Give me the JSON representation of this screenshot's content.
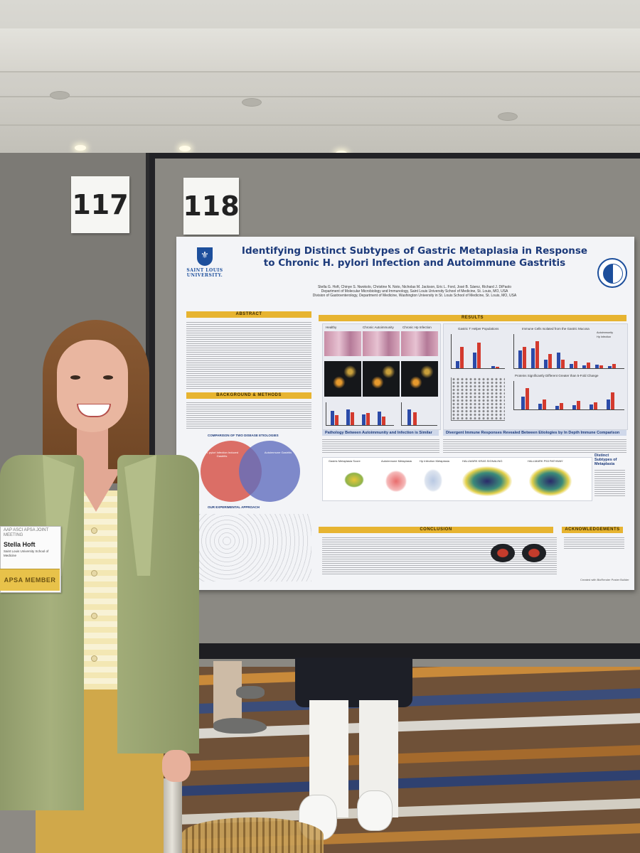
{
  "booth_numbers": {
    "left": "117",
    "right": "118"
  },
  "poster": {
    "title_line1": "Identifying Distinct Subtypes of Gastric Metaplasia in Response",
    "title_line2": "to Chronic H. pylori Infection and Autoimmune Gastritis",
    "university": "SAINT LOUIS UNIVERSITY.",
    "authors": "Stella G. Hoft, Chinye S. Nwokolo, Christine N. Noto, Nicholas M. Jackson, Eric L. Ford, José B. Sáenz, Richard J. DiPaolo",
    "affil1": "Department of Molecular Microbiology and Immunology, Saint Louis University School of Medicine, St. Louis, MO, USA",
    "affil2": "Division of Gastroenterology, Department of Medicine, Washington University in St. Louis School of Medicine, St. Louis, MO, USA",
    "sections": {
      "abstract": "ABSTRACT",
      "results": "RESULTS",
      "background": "BACKGROUND & METHODS",
      "conclusion": "CONCLUSION",
      "acknowledgements": "ACKNOWLEDGEMENTS"
    },
    "subheads": {
      "pathology": "Pathology Between Autoimmunity and Infection is Similar",
      "divergent": "Divergent Immune Responses Revealed Between Etiologies by In Depth Immune Comparison",
      "distinct": "Distinct Subtypes of Metaplasia",
      "comparison": "COMPARISON OF TWO DISEASE ETIOLOGIES",
      "approach": "OUR EXPERIMENTAL APPROACH"
    },
    "histology_labels": [
      "Healthy",
      "Chronic Autoimmunity",
      "Chronic Hp Infection"
    ],
    "chart_titles": [
      "Gastric T Helper Populations",
      "Immune Cells Isolated from the Gastric Mucosa",
      "Proteins Significantly Different Greater than 5-Fold Change"
    ],
    "legend": [
      "Autoimmunity",
      "Hp Infection"
    ],
    "umap_titles": [
      "Gastric Metaplasia Score",
      "Autoimmune Metaplasia",
      "Hp Infection Metaplasia",
      "HALLMARK KRAS SIGNALING",
      "HALLMARK P53 PATHWAY"
    ],
    "venn_left": "H. pylori Infection Induced Gastritis",
    "venn_right": "Autoimmune Gastritis",
    "footer": "Created with BioRender Poster Builder"
  },
  "badge": {
    "top_line": "AAP ASCI APSA JOINT MEETING",
    "name": "Stella Hoft",
    "institution": "Saint Louis University School of Medicine",
    "ribbon": "APSA MEMBER"
  },
  "colors": {
    "poster_blue": "#1d4f9c",
    "section_gold": "#e7b431",
    "bar_autoimmunity": "#2b4aa8",
    "bar_infection": "#d33a2e",
    "jacket": "#a6b07d"
  }
}
